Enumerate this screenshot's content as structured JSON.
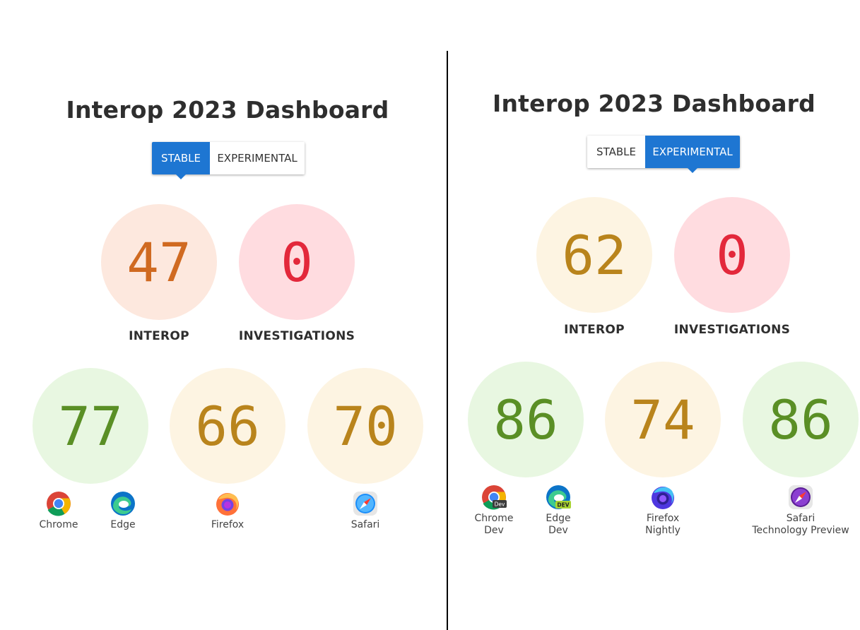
{
  "left": {
    "title": "Interop 2023 Dashboard",
    "toggle": {
      "stable_label": "STABLE",
      "experimental_label": "EXPERIMENTAL",
      "selected": "STABLE"
    },
    "summary": [
      {
        "label": "INTEROP",
        "score": "47",
        "color": "orange"
      },
      {
        "label": "INVESTIGATIONS",
        "score": "0",
        "color": "red"
      }
    ],
    "browsers": [
      {
        "score": "77",
        "color": "green"
      },
      {
        "score": "66",
        "color": "yellow"
      },
      {
        "score": "70",
        "color": "yellow"
      }
    ],
    "browser_names": [
      "Chrome",
      "Edge",
      "Firefox",
      "Safari"
    ]
  },
  "right": {
    "title": "Interop 2023 Dashboard",
    "toggle": {
      "stable_label": "STABLE",
      "experimental_label": "EXPERIMENTAL",
      "selected": "EXPERIMENTAL"
    },
    "summary": [
      {
        "label": "INTEROP",
        "score": "62",
        "color": "yellow"
      },
      {
        "label": "INVESTIGATIONS",
        "score": "0",
        "color": "red"
      }
    ],
    "browsers": [
      {
        "score": "86",
        "color": "green"
      },
      {
        "score": "74",
        "color": "yellow"
      },
      {
        "score": "86",
        "color": "green"
      }
    ],
    "browser_names": [
      {
        "line1": "Chrome",
        "line2": "Dev"
      },
      {
        "line1": "Edge",
        "line2": "Dev"
      },
      {
        "line1": "Firefox",
        "line2": "Nightly"
      },
      {
        "line1": "Safari",
        "line2": "Technology Preview"
      }
    ]
  },
  "icons": [
    "chrome-icon",
    "edge-icon",
    "firefox-icon",
    "safari-icon"
  ],
  "colors": {
    "accent": "#1e76d2",
    "orange_bg": "#fde8de",
    "orange_fg": "#d06a21",
    "red_bg": "#ffdce0",
    "red_fg": "#e3283b",
    "green_bg": "#e8f7e1",
    "green_fg": "#5a8f25",
    "yellow_bg": "#fdf4e2",
    "yellow_fg": "#b9841c"
  }
}
